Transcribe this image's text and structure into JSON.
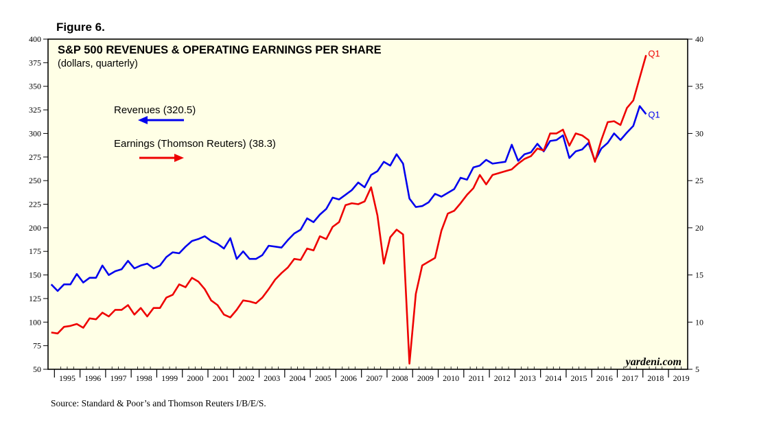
{
  "figure_label": "Figure 6.",
  "source": "Source: Standard & Poor’s and Thomson Reuters I/B/E/S.",
  "watermark": "yardeni.com",
  "colors": {
    "background": "#ffffe6",
    "revenues": "#0000ee",
    "earnings": "#ee0000"
  },
  "chart_data": {
    "type": "line",
    "title": "S&P 500 REVENUES & OPERATING EARNINGS PER SHARE",
    "subtitle": "(dollars, quarterly)",
    "grid": false,
    "legend_position": "top-left",
    "x_range": [
      1994.75,
      2019.75
    ],
    "x_ticks": [
      "1995",
      "1996",
      "1997",
      "1998",
      "1999",
      "2000",
      "2001",
      "2002",
      "2003",
      "2004",
      "2005",
      "2006",
      "2007",
      "2008",
      "2009",
      "2010",
      "2011",
      "2012",
      "2013",
      "2014",
      "2015",
      "2016",
      "2017",
      "2018",
      "2019"
    ],
    "left_axis": {
      "ylim": [
        50,
        400
      ],
      "ticks": [
        50,
        75,
        100,
        125,
        150,
        175,
        200,
        225,
        250,
        275,
        300,
        325,
        350,
        375,
        400
      ]
    },
    "right_axis": {
      "ylim": [
        5,
        40
      ],
      "ticks": [
        5,
        10,
        15,
        20,
        25,
        30,
        35,
        40
      ]
    },
    "series": [
      {
        "name": "Revenues (320.5)",
        "axis": "left",
        "end_label": "Q1",
        "legend_arrow": "left",
        "x": [
          1994.875,
          1995.125,
          1995.375,
          1995.625,
          1995.875,
          1996.125,
          1996.375,
          1996.625,
          1996.875,
          1997.125,
          1997.375,
          1997.625,
          1997.875,
          1998.125,
          1998.375,
          1998.625,
          1998.875,
          1999.125,
          1999.375,
          1999.625,
          1999.875,
          2000.125,
          2000.375,
          2000.625,
          2000.875,
          2001.125,
          2001.375,
          2001.625,
          2001.875,
          2002.125,
          2002.375,
          2002.625,
          2002.875,
          2003.125,
          2003.375,
          2003.625,
          2003.875,
          2004.125,
          2004.375,
          2004.625,
          2004.875,
          2005.125,
          2005.375,
          2005.625,
          2005.875,
          2006.125,
          2006.375,
          2006.625,
          2006.875,
          2007.125,
          2007.375,
          2007.625,
          2007.875,
          2008.125,
          2008.375,
          2008.625,
          2008.875,
          2009.125,
          2009.375,
          2009.625,
          2009.875,
          2010.125,
          2010.375,
          2010.625,
          2010.875,
          2011.125,
          2011.375,
          2011.625,
          2011.875,
          2012.125,
          2012.375,
          2012.625,
          2012.875,
          2013.125,
          2013.375,
          2013.625,
          2013.875,
          2014.125,
          2014.375,
          2014.625,
          2014.875,
          2015.125,
          2015.375,
          2015.625,
          2015.875,
          2016.125,
          2016.375,
          2016.625,
          2016.875,
          2017.125,
          2017.375,
          2017.625,
          2017.875,
          2018.125
        ],
        "values": [
          140,
          133,
          140,
          140,
          151,
          142,
          147,
          147,
          160,
          150,
          154,
          156,
          165,
          157,
          160,
          162,
          157,
          160,
          169,
          174,
          173,
          180,
          186,
          188,
          191,
          186,
          183,
          178,
          189,
          167,
          175,
          167,
          167,
          171,
          181,
          180,
          179,
          187,
          194,
          198,
          210,
          206,
          214,
          220,
          232,
          230,
          235,
          240,
          248,
          243,
          256,
          260,
          270,
          266,
          278,
          268,
          231,
          222,
          223,
          227,
          236,
          233,
          237,
          241,
          253,
          251,
          264,
          266,
          272,
          268,
          269,
          270,
          288,
          271,
          278,
          280,
          289,
          281,
          292,
          293,
          298,
          274,
          281,
          283,
          290,
          271,
          284,
          290,
          300,
          293,
          301,
          308,
          329,
          320.5
        ]
      },
      {
        "name": "Earnings (Thomson Reuters) (38.3)",
        "axis": "right",
        "end_label": "Q1",
        "legend_arrow": "right",
        "x": [
          1994.875,
          1995.125,
          1995.375,
          1995.625,
          1995.875,
          1996.125,
          1996.375,
          1996.625,
          1996.875,
          1997.125,
          1997.375,
          1997.625,
          1997.875,
          1998.125,
          1998.375,
          1998.625,
          1998.875,
          1999.125,
          1999.375,
          1999.625,
          1999.875,
          2000.125,
          2000.375,
          2000.625,
          2000.875,
          2001.125,
          2001.375,
          2001.625,
          2001.875,
          2002.125,
          2002.375,
          2002.625,
          2002.875,
          2003.125,
          2003.375,
          2003.625,
          2003.875,
          2004.125,
          2004.375,
          2004.625,
          2004.875,
          2005.125,
          2005.375,
          2005.625,
          2005.875,
          2006.125,
          2006.375,
          2006.625,
          2006.875,
          2007.125,
          2007.375,
          2007.625,
          2007.875,
          2008.125,
          2008.375,
          2008.625,
          2008.875,
          2009.125,
          2009.375,
          2009.625,
          2009.875,
          2010.125,
          2010.375,
          2010.625,
          2010.875,
          2011.125,
          2011.375,
          2011.625,
          2011.875,
          2012.125,
          2012.375,
          2012.625,
          2012.875,
          2013.125,
          2013.375,
          2013.625,
          2013.875,
          2014.125,
          2014.375,
          2014.625,
          2014.875,
          2015.125,
          2015.375,
          2015.625,
          2015.875,
          2016.125,
          2016.375,
          2016.625,
          2016.875,
          2017.125,
          2017.375,
          2017.625,
          2017.875,
          2018.125
        ],
        "values": [
          8.9,
          8.8,
          9.5,
          9.6,
          9.8,
          9.4,
          10.4,
          10.3,
          11.0,
          10.6,
          11.3,
          11.3,
          11.8,
          10.8,
          11.5,
          10.6,
          11.5,
          11.5,
          12.6,
          12.9,
          14.0,
          13.7,
          14.7,
          14.3,
          13.5,
          12.3,
          11.8,
          10.8,
          10.5,
          11.3,
          12.3,
          12.2,
          12.0,
          12.6,
          13.5,
          14.5,
          15.2,
          15.8,
          16.7,
          16.6,
          17.8,
          17.6,
          19.1,
          18.8,
          20.1,
          20.6,
          22.4,
          22.6,
          22.5,
          22.8,
          24.3,
          21.3,
          16.2,
          19.0,
          19.8,
          19.3,
          5.6,
          13.0,
          16.0,
          16.4,
          16.8,
          19.7,
          21.5,
          21.8,
          22.6,
          23.5,
          24.2,
          25.6,
          24.6,
          25.6,
          25.8,
          26.0,
          26.2,
          26.8,
          27.3,
          27.6,
          28.4,
          28.2,
          30.0,
          30.0,
          30.4,
          28.7,
          30.0,
          29.8,
          29.3,
          27.0,
          29.3,
          31.2,
          31.3,
          30.9,
          32.7,
          33.5,
          35.9,
          38.3
        ]
      }
    ]
  }
}
